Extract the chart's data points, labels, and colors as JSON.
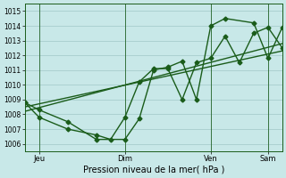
{
  "xlabel": "Pression niveau de la mer( hPa )",
  "background_color": "#c8e8e8",
  "grid_color": "#a0c8c8",
  "line_color": "#1a5c1a",
  "ylim": [
    1005.5,
    1015.5
  ],
  "yticks": [
    1006,
    1007,
    1008,
    1009,
    1010,
    1011,
    1012,
    1013,
    1014,
    1015
  ],
  "xlim": [
    0,
    18
  ],
  "day_ticks": [
    1,
    7,
    13,
    17
  ],
  "day_labels": [
    "Jeu",
    "Dim",
    "Ven",
    "Sam"
  ],
  "series1_x": [
    0,
    1,
    3,
    5,
    7,
    8,
    9,
    10,
    11,
    12,
    13,
    14,
    16,
    17,
    18
  ],
  "series1_y": [
    1008.8,
    1008.3,
    1007.5,
    1006.3,
    1006.3,
    1007.7,
    1011.0,
    1011.2,
    1011.6,
    1009.0,
    1014.0,
    1014.5,
    1014.2,
    1011.8,
    1013.9
  ],
  "series2_x": [
    0,
    1,
    3,
    5,
    6,
    7,
    8,
    9,
    10,
    11,
    12,
    13,
    14,
    15,
    16,
    17,
    18
  ],
  "series2_y": [
    1008.8,
    1007.8,
    1007.0,
    1006.6,
    1006.3,
    1007.8,
    1010.2,
    1011.1,
    1011.1,
    1009.0,
    1011.5,
    1011.8,
    1013.3,
    1011.5,
    1013.5,
    1013.9,
    1012.5
  ],
  "trend1_x": [
    0,
    18
  ],
  "trend1_y": [
    1008.5,
    1012.3
  ],
  "trend2_x": [
    0,
    18
  ],
  "trend2_y": [
    1008.2,
    1012.8
  ],
  "marker_size": 2.5,
  "line_width": 1.0
}
